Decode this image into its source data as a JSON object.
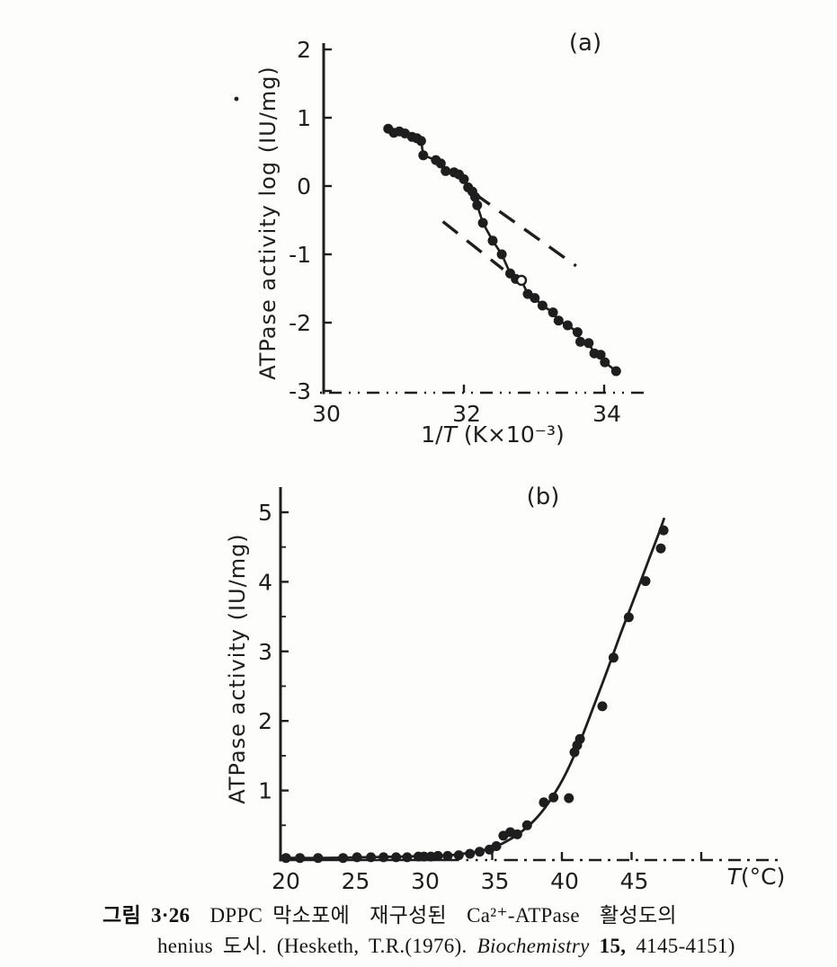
{
  "page": {
    "background": "#fdfdfb",
    "ink": "#1e1e1e"
  },
  "chart_data": [
    {
      "id": "panel-a",
      "type": "scatter",
      "panel_label": "(a)",
      "xlabel": "1/T (K×10⁻³)",
      "xlabel_parts": [
        [
          "1/",
          ""
        ],
        [
          "T",
          "i"
        ],
        [
          " (K×10⁻³)",
          ""
        ]
      ],
      "ylabel": "ATPase activity log (IU/mg)",
      "xlim": [
        30,
        34.6
      ],
      "ylim": [
        -3,
        2
      ],
      "x_tick_labels": [
        30,
        32,
        34
      ],
      "x_tick_marks": [
        32,
        34
      ],
      "y_ticks": [
        2,
        1,
        0,
        -1,
        -2,
        -3
      ],
      "points": [
        [
          30.92,
          0.84
        ],
        [
          31.0,
          0.78
        ],
        [
          31.08,
          0.8
        ],
        [
          31.16,
          0.77
        ],
        [
          31.26,
          0.72
        ],
        [
          31.33,
          0.7
        ],
        [
          31.39,
          0.66
        ],
        [
          31.42,
          0.45
        ],
        [
          31.6,
          0.38
        ],
        [
          31.67,
          0.33
        ],
        [
          31.74,
          0.22
        ],
        [
          31.86,
          0.2
        ],
        [
          31.93,
          0.17
        ],
        [
          32.0,
          0.1
        ],
        [
          32.06,
          -0.02
        ],
        [
          32.12,
          -0.08
        ],
        [
          32.16,
          -0.16
        ],
        [
          32.19,
          -0.28
        ],
        [
          32.27,
          -0.54
        ],
        [
          32.41,
          -0.8
        ],
        [
          32.54,
          -1.0
        ],
        [
          32.66,
          -1.28
        ],
        [
          32.74,
          -1.36
        ],
        [
          32.82,
          -1.38
        ],
        [
          32.91,
          -1.58
        ],
        [
          33.01,
          -1.64
        ],
        [
          33.12,
          -1.75
        ],
        [
          33.27,
          -1.85
        ],
        [
          33.35,
          -1.97
        ],
        [
          33.48,
          -2.04
        ],
        [
          33.62,
          -2.14
        ],
        [
          33.66,
          -2.28
        ],
        [
          33.78,
          -2.3
        ],
        [
          33.86,
          -2.45
        ],
        [
          33.95,
          -2.47
        ],
        [
          34.01,
          -2.58
        ],
        [
          34.17,
          -2.71
        ]
      ],
      "open_points": [
        23
      ],
      "dashed_lines": [
        {
          "x1": 32.15,
          "y1": -0.11,
          "x2": 33.6,
          "y2": -1.17
        },
        {
          "x1": 31.7,
          "y1": -0.52,
          "x2": 32.56,
          "y2": -1.22
        }
      ]
    },
    {
      "id": "panel-b",
      "type": "scatter",
      "panel_label": "(b)",
      "xlabel": "T(°C)",
      "xlabel_parts": [
        [
          "T",
          "i"
        ],
        [
          "(°C)",
          ""
        ]
      ],
      "ylabel": "ATPase activity (IU/mg)",
      "xlim": [
        20,
        56
      ],
      "ylim": [
        0,
        5.4
      ],
      "x_tick_labels": [
        20,
        25,
        30,
        35,
        40,
        45
      ],
      "x_tick_marks": [
        35,
        40,
        45,
        50
      ],
      "y_ticks": [
        1,
        2,
        3,
        4,
        5
      ],
      "y_minor_ticks": [
        0.5,
        1.5,
        2.5,
        3.5,
        4.5
      ],
      "points": [
        [
          20.2,
          0.03
        ],
        [
          21.2,
          0.03
        ],
        [
          22.5,
          0.03
        ],
        [
          24.3,
          0.03
        ],
        [
          25.3,
          0.04
        ],
        [
          26.3,
          0.04
        ],
        [
          27.2,
          0.04
        ],
        [
          28.1,
          0.04
        ],
        [
          28.9,
          0.04
        ],
        [
          29.7,
          0.05
        ],
        [
          30.1,
          0.05
        ],
        [
          30.6,
          0.05
        ],
        [
          31.1,
          0.06
        ],
        [
          31.8,
          0.06
        ],
        [
          32.6,
          0.07
        ],
        [
          33.4,
          0.09
        ],
        [
          34.1,
          0.12
        ],
        [
          34.8,
          0.15
        ],
        [
          35.3,
          0.2
        ],
        [
          35.8,
          0.35
        ],
        [
          36.3,
          0.4
        ],
        [
          36.8,
          0.37
        ],
        [
          37.5,
          0.5
        ],
        [
          38.7,
          0.83
        ],
        [
          39.4,
          0.9
        ],
        [
          40.5,
          0.89
        ],
        [
          40.9,
          1.55
        ],
        [
          41.1,
          1.65
        ],
        [
          41.3,
          1.74
        ],
        [
          42.9,
          2.21
        ],
        [
          43.7,
          2.91
        ],
        [
          44.8,
          3.49
        ],
        [
          46.0,
          4.01
        ],
        [
          47.1,
          4.48
        ],
        [
          47.3,
          4.74
        ]
      ],
      "open_points": [],
      "curve": [
        [
          20.3,
          0.03
        ],
        [
          23.0,
          0.03
        ],
        [
          26.0,
          0.04
        ],
        [
          28.5,
          0.05
        ],
        [
          30.5,
          0.06
        ],
        [
          32.0,
          0.07
        ],
        [
          33.2,
          0.1
        ],
        [
          34.3,
          0.14
        ],
        [
          35.3,
          0.2
        ],
        [
          36.3,
          0.3
        ],
        [
          37.3,
          0.44
        ],
        [
          38.3,
          0.63
        ],
        [
          39.3,
          0.9
        ],
        [
          40.3,
          1.25
        ],
        [
          41.3,
          1.7
        ],
        [
          42.3,
          2.22
        ],
        [
          43.3,
          2.75
        ],
        [
          44.3,
          3.3
        ],
        [
          45.3,
          3.82
        ],
        [
          46.3,
          4.35
        ],
        [
          47.0,
          4.72
        ],
        [
          47.35,
          4.92
        ]
      ]
    }
  ],
  "caption": {
    "line1": [
      [
        "그림 3·26",
        "b"
      ],
      [
        "  DPPC 막소포에  재구성된  Ca²⁺-ATPase  활성도의",
        ""
      ]
    ],
    "line2": [
      [
        "henius 도시. (Hesketh, T.R.(1976). ",
        ""
      ],
      [
        "Biochemistry",
        "i"
      ],
      [
        " ",
        ""
      ],
      [
        "15,",
        "b"
      ],
      [
        " 4145-4151)",
        ""
      ]
    ]
  }
}
